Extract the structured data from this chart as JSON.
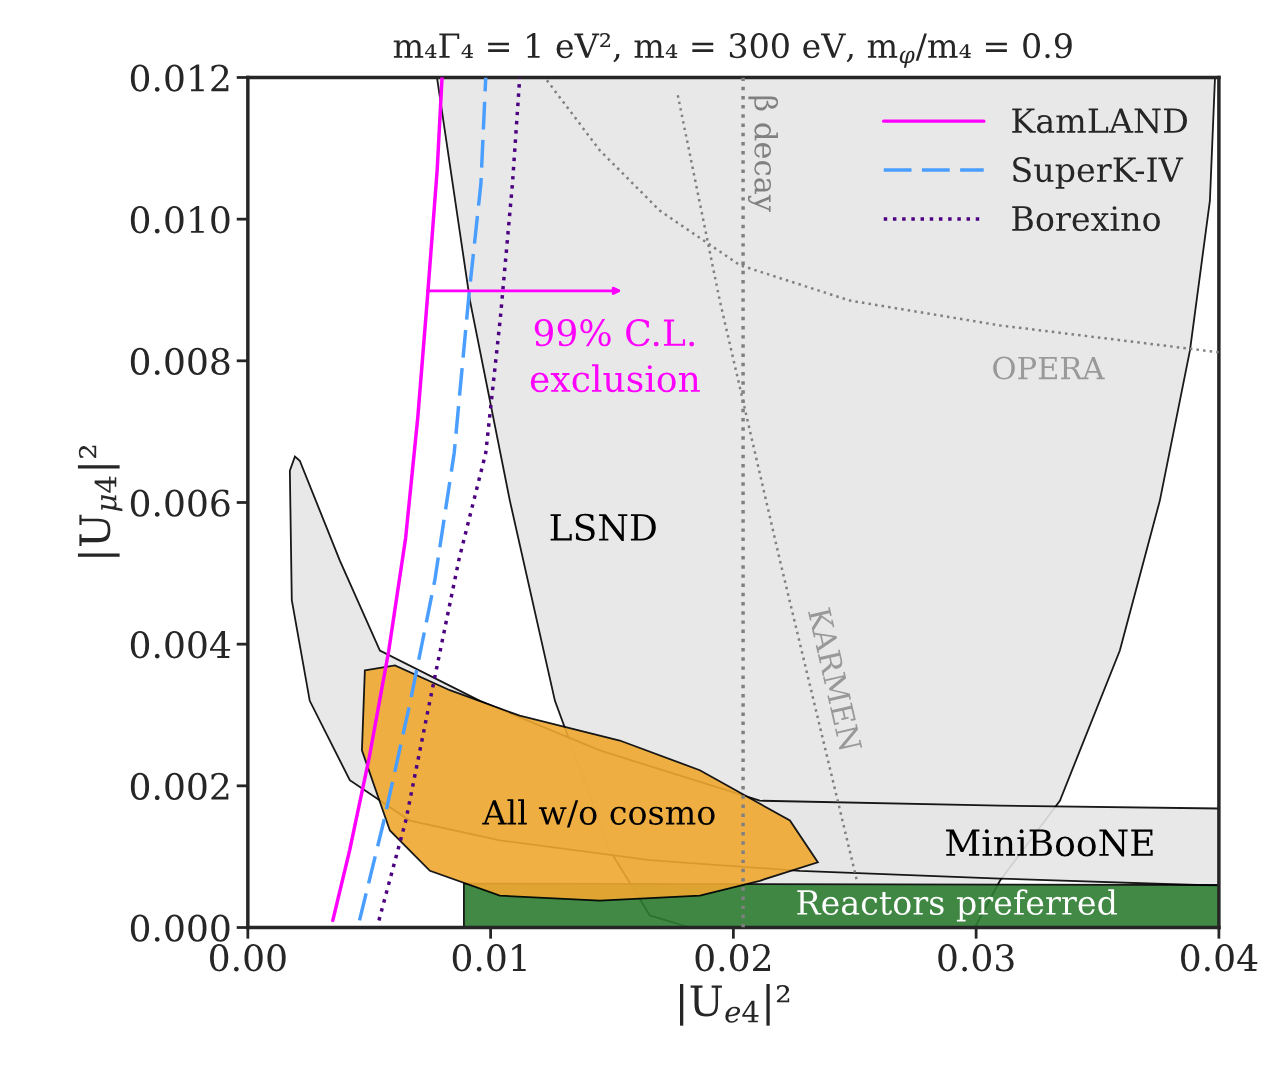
{
  "chart_data": {
    "type": "line",
    "title": "m₄Γ₄ = 1 eV², m₄ = 300 eV, m$_{φ}$/m₄ = 0.9",
    "xlabel": "|U$_{e4}$|²",
    "ylabel": "|U$_{μ4}$|²",
    "xlim": [
      0.0,
      0.04
    ],
    "ylim": [
      0.0,
      0.012
    ],
    "xticks": [
      {
        "value": 0.0,
        "label": "0.00"
      },
      {
        "value": 0.01,
        "label": "0.01"
      },
      {
        "value": 0.02,
        "label": "0.02"
      },
      {
        "value": 0.03,
        "label": "0.03"
      },
      {
        "value": 0.04,
        "label": "0.04"
      }
    ],
    "yticks": [
      {
        "value": 0.0,
        "label": "0.000"
      },
      {
        "value": 0.002,
        "label": "0.002"
      },
      {
        "value": 0.004,
        "label": "0.004"
      },
      {
        "value": 0.006,
        "label": "0.006"
      },
      {
        "value": 0.008,
        "label": "0.008"
      },
      {
        "value": 0.01,
        "label": "0.010"
      },
      {
        "value": 0.012,
        "label": "0.012"
      }
    ],
    "grid": false,
    "legend": "top right",
    "series": [
      {
        "type": "area",
        "color": "#e6e6e6",
        "x": [
          0.00779,
          0.00915,
          0.01079,
          0.01265,
          0.01491,
          0.01656,
          0.01821,
          0.02995,
          0.03098,
          0.03345,
          0.03592,
          0.03757,
          0.03881,
          0.03963,
          0.03984
        ],
        "values": [
          0.012,
          0.00885,
          0.00603,
          0.0032,
          0.00109,
          0.00017,
          0.0,
          0.0,
          0.00066,
          0.00179,
          0.00391,
          0.00603,
          0.00815,
          0.01026,
          0.012
        ]
      },
      {
        "type": "area",
        "color": "#e6e6e6",
        "x": [
          0.04,
          0.03098,
          0.02109,
          0.0145,
          0.00956,
          0.00544,
          0.00379,
          0.00214,
          0.00194,
          0.00173,
          0.00181,
          0.00255,
          0.0042,
          0.00667,
          0.01038,
          0.01656,
          0.02274,
          0.03098,
          0.04
        ],
        "values": [
          0.00168,
          0.00172,
          0.00179,
          0.0025,
          0.0032,
          0.00391,
          0.00518,
          0.00659,
          0.00665,
          0.00645,
          0.00462,
          0.0032,
          0.00208,
          0.00151,
          0.00123,
          0.00095,
          0.0008,
          0.00069,
          0.00059
        ]
      },
      {
        "type": "area",
        "color": "#2e7d32",
        "x": [
          0.0089,
          0.04,
          0.04,
          0.0089
        ],
        "values": [
          0.0,
          0.0,
          0.0006,
          0.00062
        ]
      },
      {
        "type": "area",
        "color": "#f0a830",
        "x": [
          0.00482,
          0.00606,
          0.00832,
          0.0112,
          0.01532,
          0.01862,
          0.02233,
          0.02348,
          0.02109,
          0.01862,
          0.0145,
          0.01038,
          0.0075,
          0.00585,
          0.0047
        ],
        "values": [
          0.00363,
          0.0037,
          0.00335,
          0.00299,
          0.00264,
          0.00222,
          0.00151,
          0.00092,
          0.00066,
          0.00045,
          0.00038,
          0.00045,
          0.0008,
          0.00137,
          0.0025
        ]
      },
      {
        "color": "#808080",
        "line_style": "dotted",
        "x": [
          0.01232,
          0.0145,
          0.01697,
          0.02027,
          0.0248,
          0.03098,
          0.04
        ],
        "values": [
          0.01196,
          0.01097,
          0.01012,
          0.00935,
          0.00885,
          0.0085,
          0.00812
        ]
      },
      {
        "color": "#808080",
        "line_style": "dotted",
        "x": [
          0.01771,
          0.01944,
          0.02192,
          0.02509
        ],
        "values": [
          0.01175,
          0.00885,
          0.00518,
          0.00066
        ]
      },
      {
        "name": "KamLAND",
        "color": "#ff00ff",
        "line_style": "solid",
        "x": [
          0.0035,
          0.0042,
          0.005,
          0.0058,
          0.0065,
          0.007,
          0.0074,
          0.0078,
          0.008
        ],
        "values": [
          0.0001,
          0.0011,
          0.0024,
          0.0039,
          0.0055,
          0.0072,
          0.0089,
          0.0107,
          0.012
        ]
      },
      {
        "name": "SuperK-IV",
        "color": "#4a9eff",
        "line_style": "dashed",
        "x": [
          0.0046,
          0.0056,
          0.0067,
          0.0077,
          0.0085,
          0.0091,
          0.0096,
          0.0098
        ],
        "values": [
          0.0001,
          0.0015,
          0.0032,
          0.0049,
          0.0067,
          0.0089,
          0.0105,
          0.012
        ]
      },
      {
        "name": "Borexino",
        "color": "#4b0082",
        "line_style": "dotted",
        "x": [
          0.0054,
          0.0065,
          0.0075,
          0.0087,
          0.0098,
          0.0104,
          0.0109,
          0.0112
        ],
        "values": [
          0.0001,
          0.0015,
          0.0032,
          0.0052,
          0.0067,
          0.0086,
          0.0105,
          0.012
        ]
      }
    ],
    "ref_lines": [
      {
        "axis": "x",
        "value": 0.0204,
        "label": "β decay",
        "color": "#808080",
        "line_style": "dotted"
      }
    ],
    "annotations": [
      "LSND",
      "MiniBooNE",
      "All w/o cosmo",
      "Reactors preferred",
      "OPERA",
      "KARMEN",
      "99% C.L.\nexclusion"
    ]
  }
}
